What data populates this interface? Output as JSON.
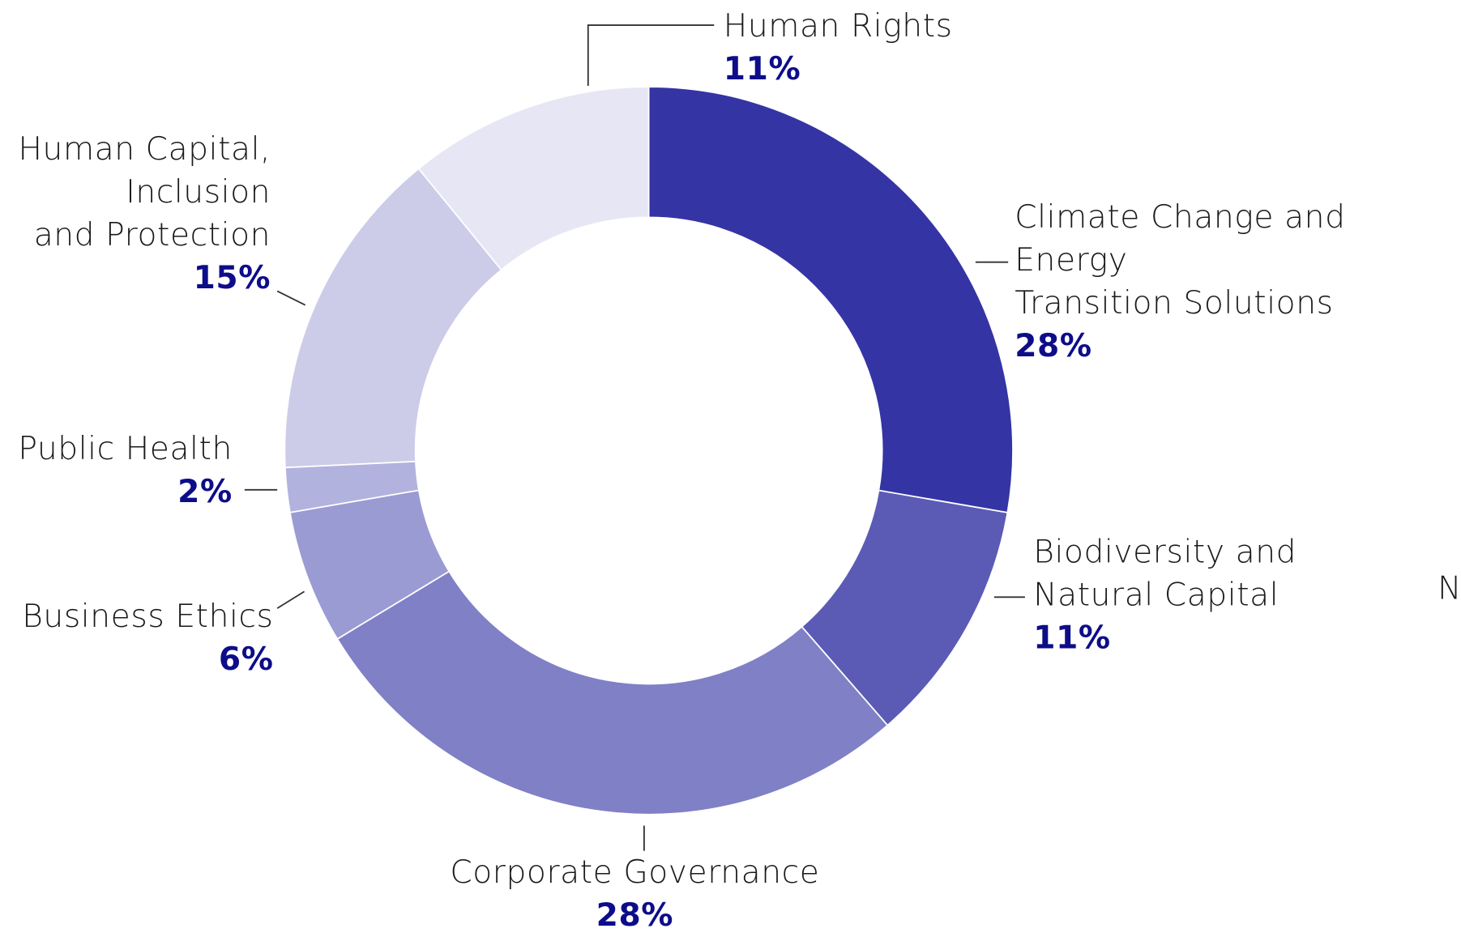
{
  "chart_data": {
    "type": "donut",
    "categories": [
      "Climate Change and Energy\nTransition Solutions",
      "Biodiversity and\nNatural Capital",
      "Corporate Governance",
      "Business Ethics",
      "Public Health",
      "Human Capital,\nInclusion\nand Protection",
      "Human Rights"
    ],
    "values": [
      28,
      11,
      28,
      6,
      2,
      15,
      11
    ],
    "value_labels": [
      "28%",
      "11%",
      "28%",
      "6%",
      "2%",
      "15%",
      "11%"
    ],
    "colors": [
      "#3434a4",
      "#5b5bb6",
      "#8080c6",
      "#9b9bd3",
      "#b2b2de",
      "#cccce9",
      "#e6e6f5"
    ],
    "clipped_text": "N"
  }
}
